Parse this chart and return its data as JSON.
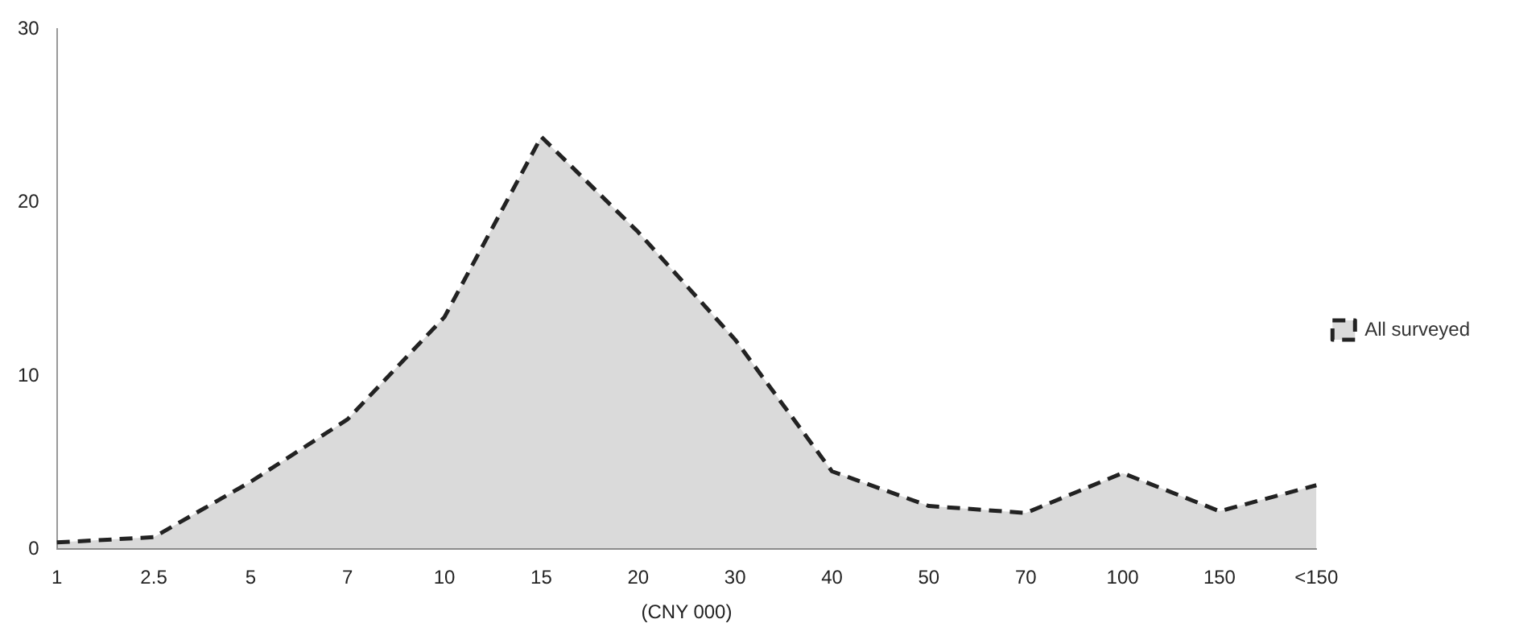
{
  "chart_data": {
    "type": "area",
    "xlabel": "(CNY 000)",
    "categories": [
      "1",
      "2.5",
      "5",
      "7",
      "10",
      "15",
      "20",
      "30",
      "40",
      "50",
      "70",
      "100",
      "150",
      "<150"
    ],
    "series": [
      {
        "name": "All surveyed",
        "color": "#222222",
        "values": [
          0.4,
          0.7,
          3.9,
          7.5,
          13.4,
          23.8,
          18.3,
          12.1,
          4.5,
          2.5,
          2.1,
          4.4,
          2.2,
          3.7
        ]
      }
    ],
    "ylim": [
      0,
      30
    ],
    "yticks": [
      0,
      10,
      20,
      30
    ],
    "grid": false,
    "legend": "right",
    "line_style": "dashed",
    "marker": "none"
  }
}
